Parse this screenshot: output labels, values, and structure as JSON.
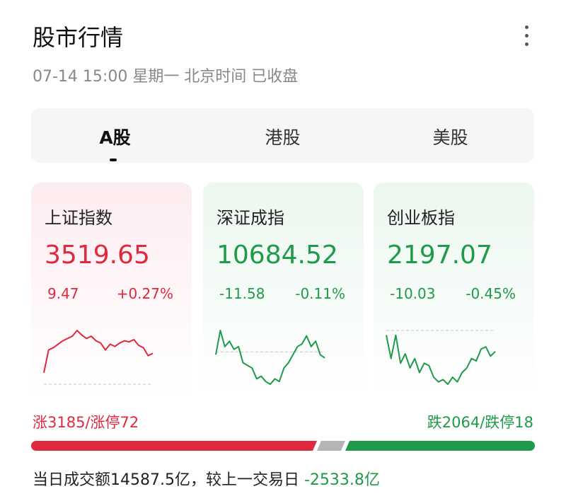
{
  "header": {
    "title": "股市行情",
    "subtitle": "07-14 15:00 星期一 北京时间 已收盘"
  },
  "tabs": [
    "A股",
    "港股",
    "美股"
  ],
  "indices": [
    {
      "name": "上证指数",
      "value": "3519.65",
      "change": "9.47",
      "change_pct": "+0.27%",
      "color": "#e0283e",
      "bg": "#fdecef",
      "baseline": 0,
      "sparkline": [
        0.1,
        0.3,
        0.32,
        0.35,
        0.38,
        0.4,
        0.42,
        0.47,
        0.43,
        0.4,
        0.42,
        0.38,
        0.36,
        0.3,
        0.35,
        0.33,
        0.36,
        0.38,
        0.37,
        0.39,
        0.34,
        0.32,
        0.25,
        0.27
      ]
    },
    {
      "name": "深证成指",
      "value": "10684.52",
      "change": "-11.58",
      "change_pct": "-0.11%",
      "color": "#1f9a4a",
      "bg": "#ebf7ef",
      "baseline": 0,
      "sparkline": [
        -0.05,
        0.4,
        0.1,
        0.2,
        0.05,
        0.1,
        -0.2,
        -0.25,
        -0.3,
        -0.5,
        -0.45,
        -0.55,
        -0.6,
        -0.5,
        -0.55,
        -0.3,
        -0.2,
        -0.05,
        0.1,
        0.15,
        0.3,
        0.1,
        0.2,
        -0.05,
        -0.11
      ]
    },
    {
      "name": "创业板指",
      "value": "2197.07",
      "change": "-10.03",
      "change_pct": "-0.45%",
      "color": "#1f9a4a",
      "bg": "#ebf7ef",
      "baseline": 0,
      "sparkline": [
        -0.1,
        -0.6,
        -0.1,
        -0.7,
        -0.5,
        -0.8,
        -0.6,
        -0.9,
        -0.7,
        -0.75,
        -1.0,
        -1.1,
        -1.05,
        -1.15,
        -1.0,
        -1.1,
        -0.9,
        -0.8,
        -0.6,
        -0.65,
        -0.4,
        -0.35,
        -0.55,
        -0.45
      ]
    }
  ],
  "breadth": {
    "up": "涨3185/涨停72",
    "down": "跌2064/跌停18"
  },
  "turnover": {
    "text": "当日成交额14587.5亿，较上一交易日",
    "diff": "-2533.8亿"
  }
}
